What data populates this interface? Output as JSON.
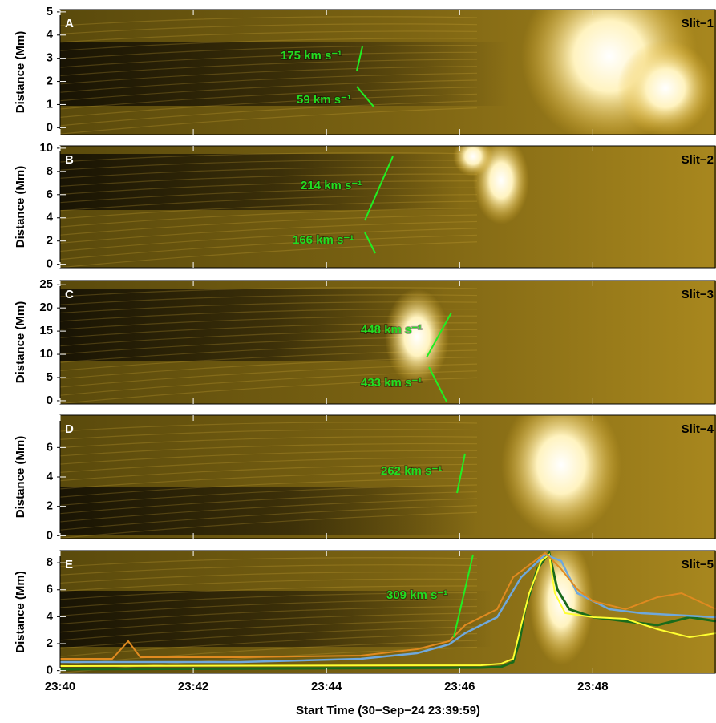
{
  "chart_data": [
    {
      "type": "image",
      "panel": "A",
      "slit": "Slit−1",
      "ylabel": "Distance (Mm)",
      "ylim": [
        -0.3,
        5.1
      ],
      "yticks": [
        0,
        1,
        2,
        3,
        4,
        5
      ],
      "annotations": [
        "175 km s⁻¹",
        "59 km s⁻¹"
      ]
    },
    {
      "type": "image",
      "panel": "B",
      "slit": "Slit−2",
      "ylabel": "Distance (Mm)",
      "ylim": [
        -0.3,
        10.2
      ],
      "yticks": [
        0,
        2,
        4,
        6,
        8,
        10
      ],
      "annotations": [
        "214 km s⁻¹",
        "166 km s⁻¹"
      ]
    },
    {
      "type": "image",
      "panel": "C",
      "slit": "Slit−3",
      "ylabel": "Distance (Mm)",
      "ylim": [
        -0.7,
        25.9
      ],
      "yticks": [
        0,
        5,
        10,
        15,
        20,
        25
      ],
      "annotations": [
        "448 km s⁻¹",
        "433 km s⁻¹"
      ]
    },
    {
      "type": "image",
      "panel": "D",
      "slit": "Slit−4",
      "ylabel": "Distance (Mm)",
      "ylim": [
        -0.2,
        8.2
      ],
      "yticks": [
        0,
        2,
        4,
        6
      ],
      "annotations": [
        "262 km s⁻¹"
      ]
    },
    {
      "type": "image",
      "panel": "E",
      "slit": "Slit−5",
      "ylabel": "Distance (Mm)",
      "ylim": [
        -0.2,
        8.9
      ],
      "yticks": [
        0,
        2,
        4,
        6,
        8
      ],
      "annotations": [
        "309 km s⁻¹"
      ],
      "xlabel": "Start Time (30−Sep−24 23:39:59)",
      "xlim": [
        "23:40:00",
        "23:49:51"
      ],
      "xticks": [
        "23:40",
        "23:42",
        "23:44",
        "23:46",
        "23:48"
      ]
    }
  ]
}
